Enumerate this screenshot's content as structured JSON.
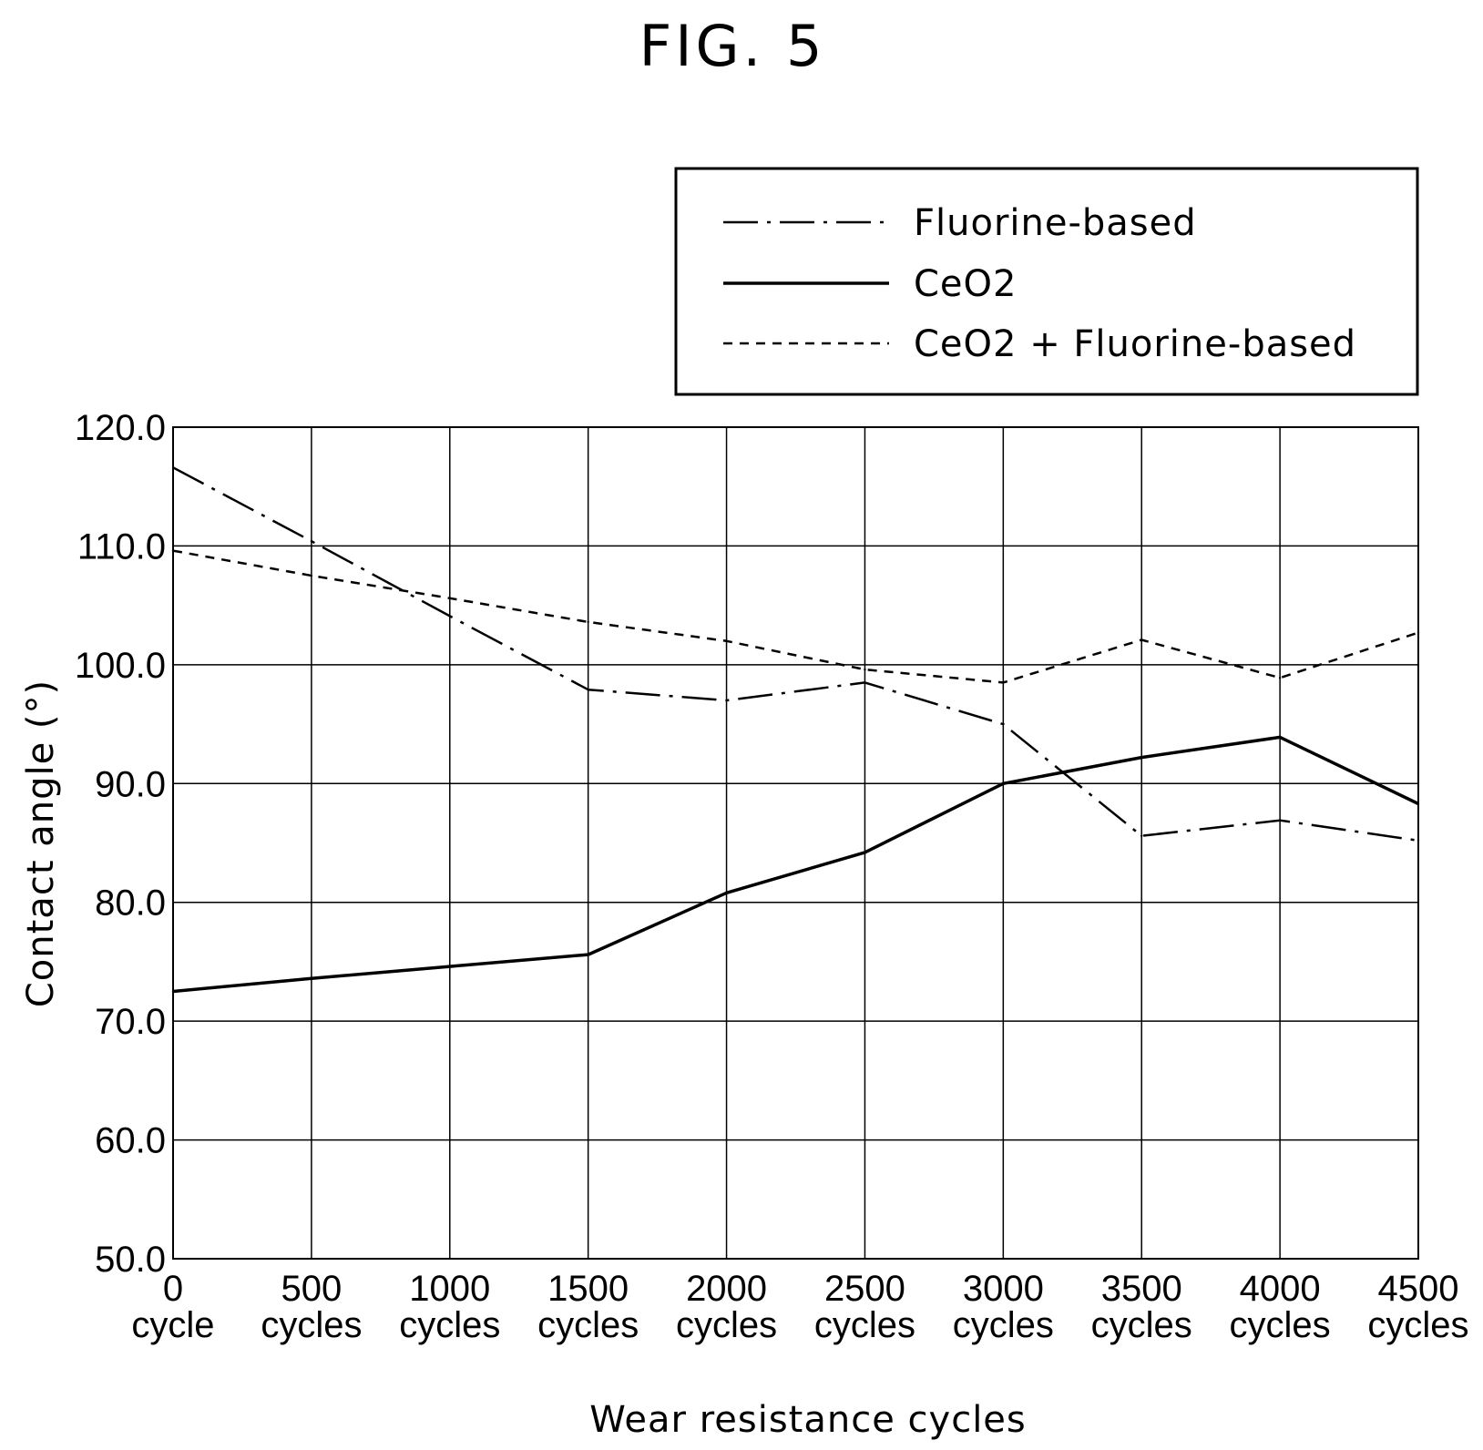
{
  "figure_label": "FIG. 5",
  "chart_data": {
    "type": "line",
    "xlabel": "Wear resistance cycles",
    "ylabel": "Contact angle (°)",
    "categories": [
      {
        "line1": "0",
        "line2": "cycle"
      },
      {
        "line1": "500",
        "line2": "cycles"
      },
      {
        "line1": "1000",
        "line2": "cycles"
      },
      {
        "line1": "1500",
        "line2": "cycles"
      },
      {
        "line1": "2000",
        "line2": "cycles"
      },
      {
        "line1": "2500",
        "line2": "cycles"
      },
      {
        "line1": "3000",
        "line2": "cycles"
      },
      {
        "line1": "3500",
        "line2": "cycles"
      },
      {
        "line1": "4000",
        "line2": "cycles"
      },
      {
        "line1": "4500",
        "line2": "cycles"
      }
    ],
    "x": [
      0,
      500,
      1000,
      1500,
      2000,
      2500,
      3000,
      3500,
      4000,
      4500
    ],
    "ylim": [
      50,
      120
    ],
    "yticks": [
      "50.0",
      "60.0",
      "70.0",
      "80.0",
      "90.0",
      "100.0",
      "110.0",
      "120.0"
    ],
    "ytick_values": [
      50,
      60,
      70,
      80,
      90,
      100,
      110,
      120
    ],
    "grid": true,
    "legend_position": "top-right",
    "series": [
      {
        "name": "Fluorine-based",
        "style": "dash-dot",
        "values": [
          116.6,
          110.4,
          104.1,
          97.9,
          97.0,
          98.5,
          95.0,
          85.6,
          86.9,
          85.2
        ]
      },
      {
        "name": "CeO2",
        "style": "solid",
        "values": [
          72.5,
          73.6,
          74.6,
          75.6,
          80.8,
          84.2,
          90.0,
          92.2,
          93.9,
          88.3
        ]
      },
      {
        "name": "CeO2 + Fluorine-based",
        "style": "dashed",
        "values": [
          109.6,
          107.5,
          105.6,
          103.6,
          102.0,
          99.6,
          98.5,
          102.1,
          98.9,
          102.7
        ]
      }
    ]
  }
}
